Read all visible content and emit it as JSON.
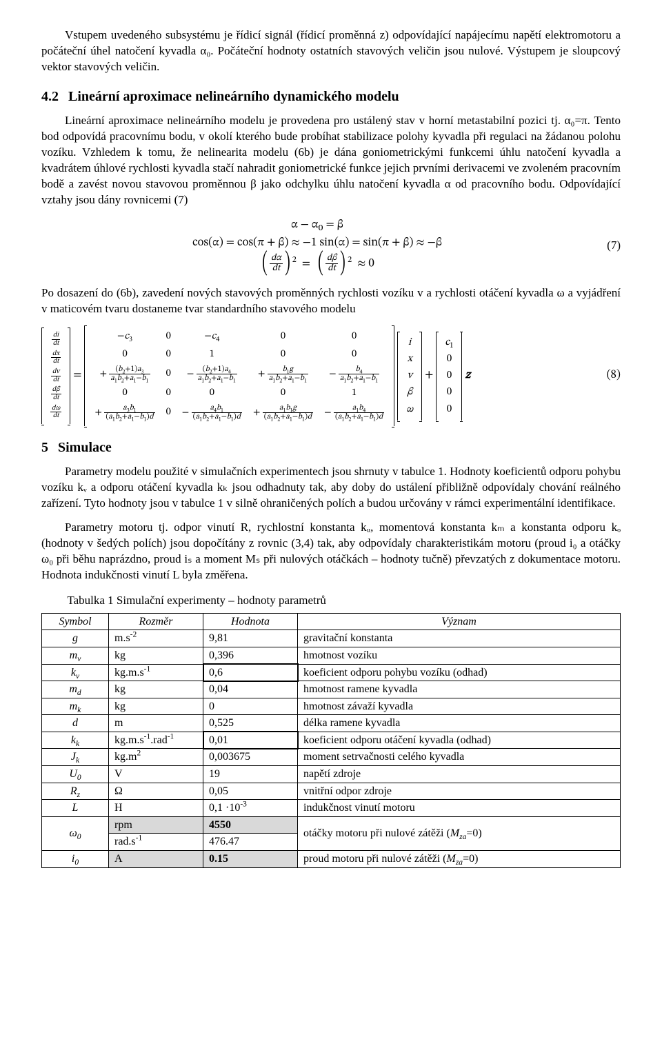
{
  "intro": {
    "p1": "Vstupem uvedeného subsystému je řídicí signál (řídicí proměnná z) odpovídající napájecímu napětí elektromotoru a počáteční úhel natočení kyvadla α₀. Počáteční hodnoty ostatních stavových veličin jsou nulové. Výstupem je sloupcový vektor stavových veličin."
  },
  "sec42": {
    "num": "4.2",
    "title": "Lineární aproximace nelineárního dynamického modelu",
    "p1": "Lineární aproximace nelineárního modelu je provedena pro ustálený stav v horní metastabilní pozici tj. α₀=π. Tento bod odpovídá pracovnímu bodu, v okolí kterého bude probíhat stabilizace polohy kyvadla při regulaci na žádanou polohu vozíku. Vzhledem k tomu, že nelinearita modelu (6b) je dána goniometrickými funkcemi úhlu natočení kyvadla a kvadrátem úhlové rychlosti kyvadla stačí nahradit goniometrické funkce jejich prvními derivacemi ve zvoleném pracovním bodě a zavést novou stavovou proměnnou β jako odchylku úhlu natočení kyvadla α od pracovního bodu. Odpovídající vztahy jsou dány rovnicemi (7)"
  },
  "eq7": {
    "line1": "α − α₀ = β",
    "line2": "cos(α) = cos(π + β) ≈ −1        sin(α)  = sin(π + β) ≈ −β",
    "line3_lhs": "dα",
    "line3_dt": "dt",
    "num": "(7)"
  },
  "afterEq7": {
    "p": "Po dosazení do (6b), zavedení nových stavových proměnných rychlosti vozíku v a rychlosti otáčení kyvadla ω a vyjádření v maticovém tvaru dostaneme tvar standardního stavového modelu"
  },
  "eq8": {
    "lhs": [
      "di/dt",
      "dx/dt",
      "dv/dt",
      "dβ/dt",
      "dω/dt"
    ],
    "A": [
      [
        "−c₃",
        "0",
        "−c₄",
        "0",
        "0"
      ],
      [
        "0",
        "0",
        "1",
        "0",
        "0"
      ],
      [
        "+ (b₂+1)a₃ / (a₁b₂+a₁−b₁)",
        "0",
        "− (b₂+1)a₄ / (a₁b₂+a₁−b₁)",
        "+ b₁g / (a₁b₂+a₁−b₁)",
        "− b₄ / (a₁b₂+a₁−b₁)"
      ],
      [
        "0",
        "0",
        "0",
        "0",
        "1"
      ],
      [
        "+ a₃b₁ / ((a₁b₂+a₁−b₁)d)",
        "0",
        "− a₄b₁ / ((a₁b₂+a₁−b₁)d)",
        "+ a₁b₁g / ((a₁b₂+a₁−b₁)d)",
        "− a₁b₄ / ((a₁b₂+a₁−b₁)d)"
      ]
    ],
    "statevec": [
      "i",
      "x",
      "v",
      "β",
      "ω"
    ],
    "Bvec": [
      "c₁",
      "0",
      "0",
      "0",
      "0"
    ],
    "z": "z",
    "num": "(8)"
  },
  "sec5": {
    "num": "5",
    "title": "Simulace",
    "p1": "Parametry modelu použité v simulačních experimentech jsou shrnuty v tabulce 1. Hodnoty koeficientů odporu pohybu vozíku kᵥ a odporu otáčení kyvadla kₖ jsou odhadnuty tak, aby doby do ustálení přibližně odpovídaly chování reálného zařízení. Tyto hodnoty jsou v tabulce 1 v silně ohraničených polích a budou určovány v rámci experimentální identifikace.",
    "p2": "Parametry motoru tj. odpor vinutí R, rychlostní konstanta kᵤ, momentová konstanta kₘ a konstanta odporu kₒ (hodnoty v šedých polích) jsou dopočítány z rovnic (3,4) tak, aby odpovídaly charakteristikám motoru (proud i₀ a otáčky ω₀ při běhu naprázdno, proud iₛ a moment Mₛ při nulových otáčkách – hodnoty tučně) převzatých z dokumentace motoru. Hodnota indukčnosti vinutí L byla změřena.",
    "tabcap": "Tabulka 1 Simulační experimenty – hodnoty parametrů"
  },
  "table": {
    "headers": [
      "Symbol",
      "Rozměr",
      "Hodnota",
      "Význam"
    ],
    "rows": [
      {
        "sym": "g",
        "unit": "m.s⁻²",
        "val": "9,81",
        "desc": "gravitační konstanta"
      },
      {
        "sym": "mᵥ",
        "unit": "kg",
        "val": "0,396",
        "desc": "hmotnost vozíku"
      },
      {
        "sym": "kᵥ",
        "unit": "kg.m.s⁻¹",
        "val": "0,6",
        "desc": "koeficient odporu pohybu vozíku (odhad)",
        "boxed": true
      },
      {
        "sym": "m_d",
        "unit": "kg",
        "val": "0,04",
        "desc": "hmotnost ramene kyvadla"
      },
      {
        "sym": "mₖ",
        "unit": "kg",
        "val": "0",
        "desc": "hmotnost závaží kyvadla"
      },
      {
        "sym": "d",
        "unit": "m",
        "val": "0,525",
        "desc": "délka ramene kyvadla"
      },
      {
        "sym": "kₖ",
        "unit": "kg.m.s⁻¹.rad⁻¹",
        "val": "0,01",
        "desc": "koeficient odporu otáčení kyvadla (odhad)",
        "boxed": true
      },
      {
        "sym": "Jₖ",
        "unit": "kg.m²",
        "val": "0,003675",
        "desc": "moment setrvačnosti celého kyvadla"
      },
      {
        "sym": "U₀",
        "unit": "V",
        "val": "19",
        "desc": "napětí zdroje"
      },
      {
        "sym": "R_z",
        "unit": "Ω",
        "val": "0,05",
        "desc": "vnitřní odpor zdroje"
      },
      {
        "sym": "L",
        "unit": "H",
        "val": "0,1 ·10⁻³",
        "desc": "indukčnost vinutí motoru"
      },
      {
        "sym": "ω₀",
        "unit": "rpm",
        "val": "4550",
        "desc": "otáčky motoru při nulové zátěži (M_za=0)",
        "bold": true,
        "rowspan": 2
      },
      {
        "unit": "rad.s⁻¹",
        "val": "476.47"
      },
      {
        "sym": "i₀",
        "unit": "A",
        "val": "0.15",
        "desc": "proud motoru při nulové zátěži (M_za=0)",
        "bold": true
      }
    ]
  }
}
